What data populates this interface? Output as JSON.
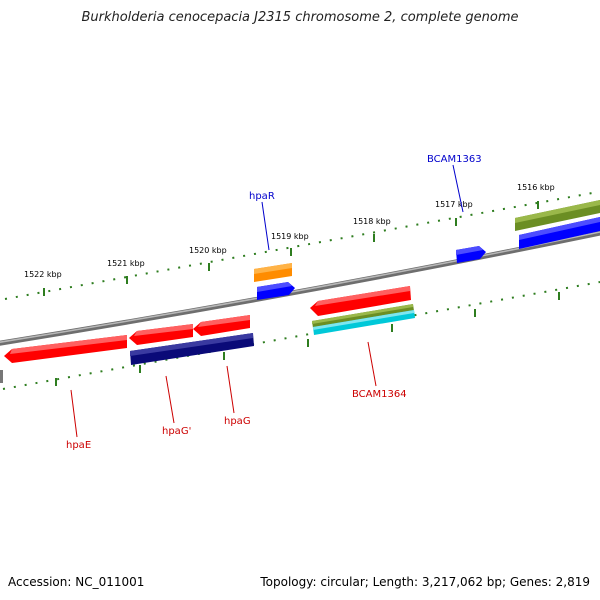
{
  "title": "Burkholderia cenocepacia J2315 chromosome 2, complete genome",
  "footer": {
    "accession": "Accession: NC_011001",
    "summary": "Topology: circular; Length: 3,217,062 bp; Genes: 2,819"
  },
  "ruler_labels": [
    "1522 kbp",
    "1521 kbp",
    "1520 kbp",
    "1519 kbp",
    "1518 kbp",
    "1517 kbp",
    "1516 kbp"
  ],
  "gene_labels": [
    {
      "text": "hpaR",
      "color": "#0000cc"
    },
    {
      "text": "BCAM1363",
      "color": "#0000cc"
    },
    {
      "text": "hpaE",
      "color": "#cc0000"
    },
    {
      "text": "hpaG'",
      "color": "#cc0000"
    },
    {
      "text": "hpaG",
      "color": "#cc0000"
    },
    {
      "text": "BCAM1364",
      "color": "#cc0000"
    }
  ],
  "colors": {
    "backbone": "#808080",
    "ticks": "#2e7d1f",
    "red": "#ff0000",
    "navy": "#0a0a78",
    "blue": "#0000ff",
    "orange": "#ff8c00",
    "olive": "#6b8e23",
    "cyan": "#00c8d8"
  }
}
